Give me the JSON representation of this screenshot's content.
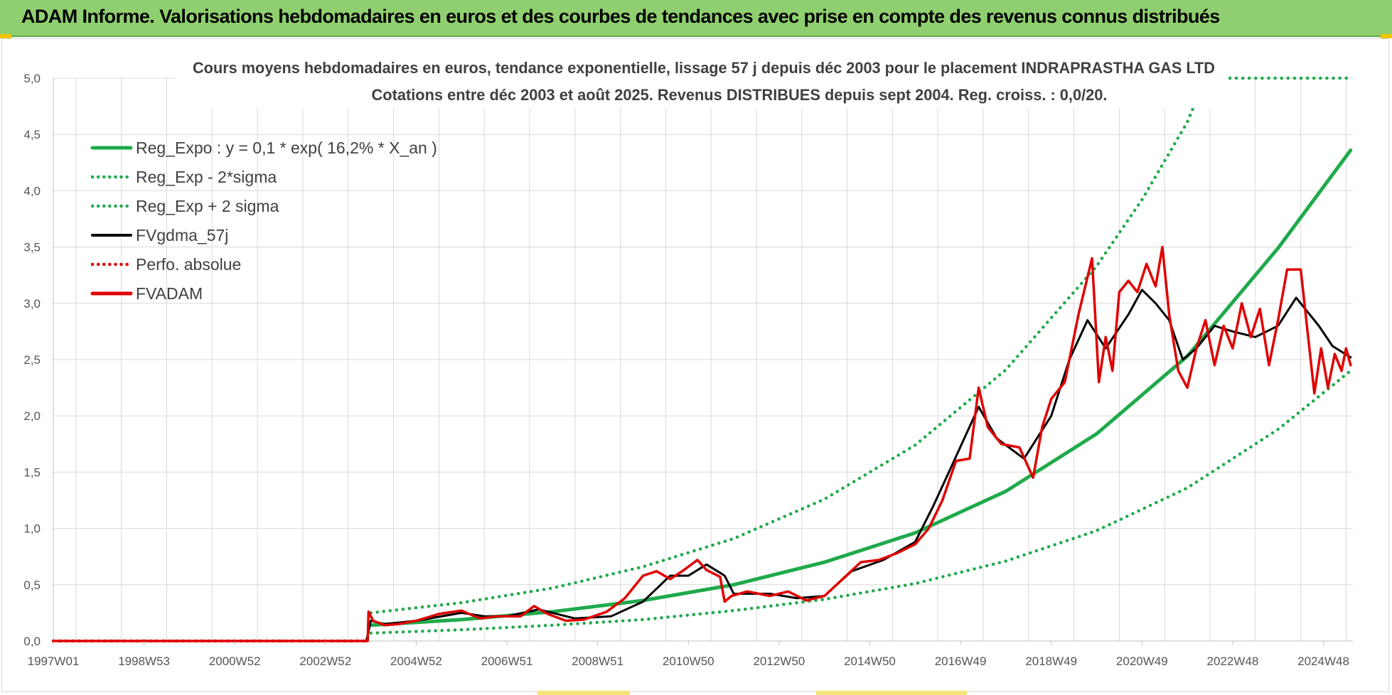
{
  "header": {
    "title": "ADAM Informe. Valorisations hebdomadaires en euros et des courbes de tendances avec prise en compte des revenus connus distribués"
  },
  "colors": {
    "header_bg": "#8fcf6f",
    "green": "#1faa4b",
    "black": "#000000",
    "red": "#e00000",
    "grid": "#d9d9d9"
  },
  "chart_data": {
    "type": "line",
    "title_line1": "Cours moyens hebdomadaires en euros, tendance exponentielle, lissage 57 j depuis déc 2003 pour le placement INDRAPRASTHA GAS LTD",
    "title_line2": "Cotations entre déc 2003 et août 2025. Revenus DISTRIBUES depuis sept 2004. Reg. croiss. : 0,0/20.",
    "xlabel": "",
    "ylabel": "",
    "ylim": [
      0,
      5
    ],
    "xlim": [
      1997.0,
      2025.65
    ],
    "y_ticks": [
      "0,0",
      "0,5",
      "1,0",
      "1,5",
      "2,0",
      "2,5",
      "3,0",
      "3,5",
      "4,0",
      "4,5",
      "5,0"
    ],
    "x_ticks": [
      {
        "label": "1997W01",
        "x": 1997.0
      },
      {
        "label": "1998W53",
        "x": 1999.0
      },
      {
        "label": "2000W52",
        "x": 2001.0
      },
      {
        "label": "2002W52",
        "x": 2003.0
      },
      {
        "label": "2004W52",
        "x": 2005.0
      },
      {
        "label": "2006W51",
        "x": 2007.0
      },
      {
        "label": "2008W51",
        "x": 2009.0
      },
      {
        "label": "2010W50",
        "x": 2011.0
      },
      {
        "label": "2012W50",
        "x": 2013.0
      },
      {
        "label": "2014W50",
        "x": 2015.0
      },
      {
        "label": "2016W49",
        "x": 2017.0
      },
      {
        "label": "2018W49",
        "x": 2019.0
      },
      {
        "label": "2020W49",
        "x": 2021.0
      },
      {
        "label": "2022W48",
        "x": 2023.0
      },
      {
        "label": "2024W48",
        "x": 2025.0
      }
    ],
    "grid": true,
    "legend_position": "top-left",
    "series": [
      {
        "name": "Reg_Expo : y = 0,1 * exp( 16,2% *  X_an )",
        "color": "#1faa4b",
        "style": "solid",
        "x": [
          2004.0,
          2006.0,
          2008.0,
          2010.0,
          2012.0,
          2014.0,
          2016.0,
          2018.0,
          2020.0,
          2022.0,
          2024.0,
          2025.6
        ],
        "y": [
          0.14,
          0.19,
          0.26,
          0.36,
          0.5,
          0.7,
          0.96,
          1.33,
          1.84,
          2.53,
          3.49,
          4.36
        ]
      },
      {
        "name": "Reg_Exp - 2*sigma",
        "color": "#1faa4b",
        "style": "dotted",
        "x": [
          2004.0,
          2006.0,
          2008.0,
          2010.0,
          2012.0,
          2014.0,
          2016.0,
          2018.0,
          2020.0,
          2022.0,
          2024.0,
          2025.6
        ],
        "y": [
          0.07,
          0.1,
          0.14,
          0.19,
          0.27,
          0.37,
          0.51,
          0.71,
          0.98,
          1.36,
          1.88,
          2.4
        ]
      },
      {
        "name": "Reg_Exp + 2 sigma",
        "color": "#1faa4b",
        "style": "dotted",
        "x": [
          2004.0,
          2006.0,
          2008.0,
          2010.0,
          2012.0,
          2014.0,
          2016.0,
          2018.0,
          2020.0,
          2021.0,
          2022.0,
          2022.4,
          2025.6
        ],
        "y": [
          0.25,
          0.34,
          0.47,
          0.66,
          0.91,
          1.26,
          1.74,
          2.41,
          3.33,
          3.92,
          4.61,
          5.0,
          5.0
        ]
      },
      {
        "name": "FVgdma_57j",
        "color": "#000000",
        "style": "solid",
        "x": [
          1997.0,
          2003.9,
          2004.0,
          2004.3,
          2005.0,
          2006.0,
          2006.5,
          2007.0,
          2007.7,
          2008.5,
          2009.3,
          2010.0,
          2010.6,
          2011.0,
          2011.4,
          2011.8,
          2012.0,
          2012.8,
          2013.4,
          2014.0,
          2014.6,
          2015.3,
          2016.0,
          2016.4,
          2016.8,
          2017.4,
          2017.8,
          2018.4,
          2019.0,
          2019.4,
          2019.8,
          2020.2,
          2020.7,
          2021.0,
          2021.3,
          2021.6,
          2021.9,
          2022.2,
          2022.6,
          2023.0,
          2023.5,
          2024.0,
          2024.4,
          2024.9,
          2025.2,
          2025.6
        ],
        "y": [
          0.0,
          0.0,
          0.18,
          0.15,
          0.18,
          0.25,
          0.22,
          0.22,
          0.28,
          0.2,
          0.22,
          0.35,
          0.58,
          0.58,
          0.68,
          0.58,
          0.42,
          0.42,
          0.38,
          0.4,
          0.62,
          0.72,
          0.88,
          1.2,
          1.55,
          2.08,
          1.8,
          1.62,
          2.0,
          2.5,
          2.85,
          2.6,
          2.9,
          3.12,
          3.0,
          2.85,
          2.5,
          2.6,
          2.8,
          2.75,
          2.7,
          2.8,
          3.05,
          2.8,
          2.62,
          2.52
        ]
      },
      {
        "name": "Perfo. absolue",
        "color": "#e00000",
        "style": "dotted",
        "x": [
          1997.0,
          2003.9
        ],
        "y": [
          0.0,
          0.0
        ]
      },
      {
        "name": "FVADAM",
        "color": "#e00000",
        "style": "solid",
        "x": [
          1997.0,
          2003.93,
          2003.95,
          2004.05,
          2004.3,
          2004.6,
          2005.0,
          2005.5,
          2006.0,
          2006.4,
          2006.8,
          2007.3,
          2007.6,
          2007.9,
          2008.3,
          2008.7,
          2009.2,
          2009.6,
          2010.0,
          2010.3,
          2010.6,
          2010.9,
          2011.2,
          2011.4,
          2011.7,
          2011.8,
          2011.95,
          2012.3,
          2012.8,
          2013.2,
          2013.6,
          2014.0,
          2014.4,
          2014.8,
          2015.2,
          2015.6,
          2016.0,
          2016.3,
          2016.6,
          2016.9,
          2017.2,
          2017.4,
          2017.6,
          2017.9,
          2018.3,
          2018.6,
          2018.8,
          2019.0,
          2019.3,
          2019.6,
          2019.9,
          2020.05,
          2020.2,
          2020.35,
          2020.5,
          2020.7,
          2020.9,
          2021.1,
          2021.3,
          2021.45,
          2021.6,
          2021.8,
          2022.0,
          2022.2,
          2022.4,
          2022.6,
          2022.8,
          2023.0,
          2023.2,
          2023.4,
          2023.6,
          2023.8,
          2024.0,
          2024.2,
          2024.5,
          2024.8,
          2024.95,
          2025.1,
          2025.25,
          2025.4,
          2025.5,
          2025.6
        ],
        "y": [
          0.0,
          0.0,
          0.26,
          0.18,
          0.14,
          0.15,
          0.18,
          0.24,
          0.27,
          0.2,
          0.22,
          0.22,
          0.31,
          0.24,
          0.18,
          0.19,
          0.26,
          0.38,
          0.58,
          0.62,
          0.55,
          0.63,
          0.72,
          0.63,
          0.57,
          0.35,
          0.4,
          0.44,
          0.4,
          0.44,
          0.36,
          0.4,
          0.55,
          0.7,
          0.72,
          0.78,
          0.86,
          1.0,
          1.25,
          1.6,
          1.62,
          2.25,
          1.9,
          1.75,
          1.72,
          1.45,
          1.9,
          2.15,
          2.3,
          2.9,
          3.4,
          2.3,
          2.7,
          2.4,
          3.1,
          3.2,
          3.1,
          3.35,
          3.15,
          3.5,
          2.9,
          2.4,
          2.25,
          2.6,
          2.85,
          2.45,
          2.8,
          2.6,
          3.0,
          2.7,
          2.95,
          2.45,
          2.85,
          3.3,
          3.3,
          2.2,
          2.6,
          2.25,
          2.55,
          2.4,
          2.6,
          2.45
        ]
      }
    ]
  }
}
